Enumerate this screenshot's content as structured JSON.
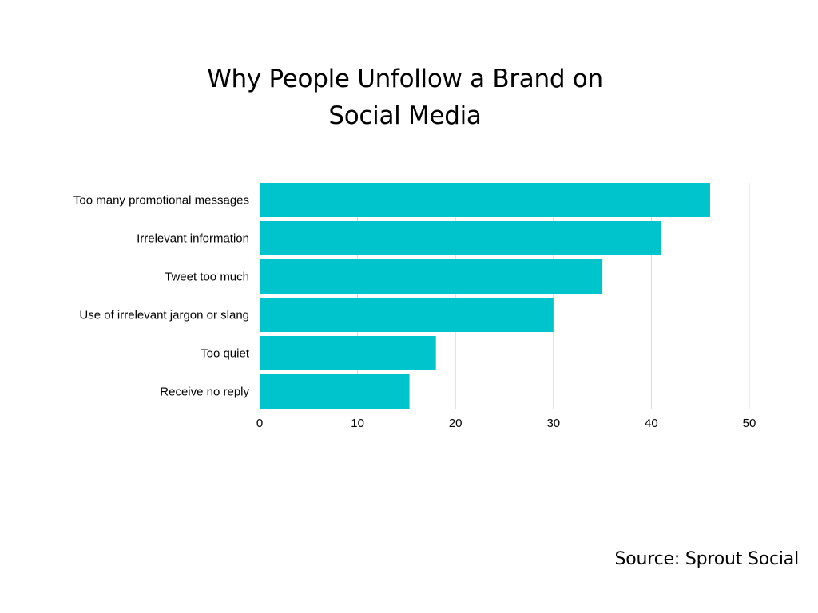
{
  "title_line1": "Why People Unfollow a Brand on",
  "title_line2": "Social Media",
  "source": "Source: Sprout Social",
  "colors": {
    "bar": "#00C4CC",
    "grid": "#D9D9D9",
    "text": "#000000"
  },
  "chart_data": {
    "type": "bar",
    "orientation": "horizontal",
    "title": "Why People Unfollow a Brand on Social Media",
    "categories": [
      "Too many promotional messages",
      "Irrelevant information ",
      "Tweet too much",
      "Use of irrelevant jargon or slang",
      "Too quiet",
      "Receive no reply"
    ],
    "values": [
      46,
      41,
      35,
      30,
      18,
      15.3
    ],
    "xlim": [
      0,
      50
    ],
    "xticks": [
      0,
      10,
      20,
      30,
      40,
      50
    ],
    "grid": true,
    "legend": "none"
  }
}
